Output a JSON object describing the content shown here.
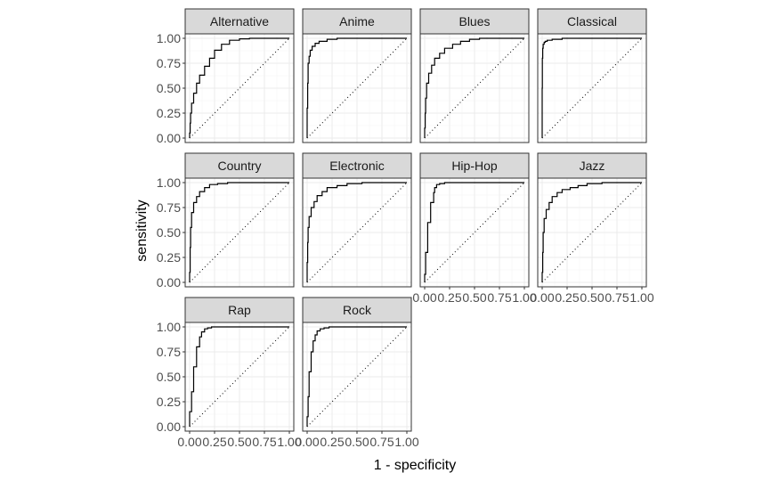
{
  "chart_data": {
    "type": "line",
    "theme": "ggplot2 theme_bw, facet_wrap (4 columns)",
    "xlabel": "1 - specificity",
    "ylabel": "sensitivity",
    "xlim": [
      0,
      1
    ],
    "ylim": [
      0,
      1
    ],
    "x_ticks": [
      "0.00",
      "0.25",
      "0.50",
      "0.75",
      "1.00"
    ],
    "y_ticks": [
      "0.00",
      "0.25",
      "0.50",
      "0.75",
      "1.00"
    ],
    "x_tick_labels_run_together": "0.000.250.500.751.00",
    "reference_line": "diagonal dotted y = x",
    "grid": true,
    "series": [
      {
        "name": "Alternative",
        "x": [
          0,
          0.005,
          0.01,
          0.02,
          0.04,
          0.07,
          0.1,
          0.15,
          0.2,
          0.25,
          0.32,
          0.4,
          0.5,
          0.6,
          0.75,
          1.0
        ],
        "y": [
          0,
          0.05,
          0.15,
          0.25,
          0.35,
          0.45,
          0.55,
          0.63,
          0.72,
          0.8,
          0.88,
          0.94,
          0.98,
          0.995,
          1.0,
          1.0
        ]
      },
      {
        "name": "Anime",
        "x": [
          0,
          0.005,
          0.01,
          0.02,
          0.03,
          0.05,
          0.08,
          0.12,
          0.2,
          0.3,
          0.45,
          0.6,
          1.0
        ],
        "y": [
          0,
          0.3,
          0.55,
          0.75,
          0.82,
          0.88,
          0.92,
          0.95,
          0.97,
          0.99,
          1.0,
          1.0,
          1.0
        ]
      },
      {
        "name": "Blues",
        "x": [
          0,
          0.005,
          0.01,
          0.02,
          0.04,
          0.07,
          0.1,
          0.15,
          0.2,
          0.28,
          0.36,
          0.45,
          0.55,
          0.7,
          1.0
        ],
        "y": [
          0,
          0.1,
          0.25,
          0.4,
          0.55,
          0.65,
          0.73,
          0.8,
          0.85,
          0.9,
          0.94,
          0.97,
          0.99,
          1.0,
          1.0
        ]
      },
      {
        "name": "Classical",
        "x": [
          0,
          0.002,
          0.005,
          0.01,
          0.02,
          0.03,
          0.05,
          0.1,
          0.2,
          0.3,
          0.45,
          1.0
        ],
        "y": [
          0,
          0.5,
          0.8,
          0.9,
          0.94,
          0.96,
          0.97,
          0.98,
          0.99,
          1.0,
          1.0,
          1.0
        ]
      },
      {
        "name": "Country",
        "x": [
          0,
          0.005,
          0.01,
          0.02,
          0.04,
          0.07,
          0.1,
          0.15,
          0.2,
          0.28,
          0.38,
          0.5,
          0.65,
          1.0
        ],
        "y": [
          0,
          0.1,
          0.35,
          0.55,
          0.7,
          0.8,
          0.86,
          0.91,
          0.95,
          0.98,
          0.99,
          1.0,
          1.0,
          1.0
        ]
      },
      {
        "name": "Electronic",
        "x": [
          0,
          0.005,
          0.01,
          0.02,
          0.04,
          0.07,
          0.1,
          0.15,
          0.2,
          0.3,
          0.4,
          0.55,
          0.7,
          1.0
        ],
        "y": [
          0,
          0.2,
          0.4,
          0.55,
          0.66,
          0.75,
          0.81,
          0.87,
          0.91,
          0.95,
          0.97,
          0.99,
          1.0,
          1.0
        ]
      },
      {
        "name": "Hip-Hop",
        "x": [
          0,
          0.01,
          0.03,
          0.06,
          0.09,
          0.1,
          0.12,
          0.15,
          0.2,
          0.3,
          0.45,
          0.6,
          1.0
        ],
        "y": [
          0,
          0.08,
          0.3,
          0.6,
          0.8,
          0.9,
          0.95,
          0.98,
          0.99,
          1.0,
          1.0,
          1.0,
          1.0
        ]
      },
      {
        "name": "Jazz",
        "x": [
          0,
          0.005,
          0.01,
          0.02,
          0.04,
          0.07,
          0.1,
          0.15,
          0.2,
          0.28,
          0.36,
          0.45,
          0.6,
          0.75,
          1.0
        ],
        "y": [
          0,
          0.1,
          0.3,
          0.5,
          0.64,
          0.73,
          0.8,
          0.86,
          0.9,
          0.93,
          0.95,
          0.97,
          0.99,
          1.0,
          1.0
        ]
      },
      {
        "name": "Rap",
        "x": [
          0,
          0.02,
          0.04,
          0.07,
          0.1,
          0.12,
          0.15,
          0.18,
          0.22,
          0.3,
          0.45,
          0.6,
          1.0
        ],
        "y": [
          0,
          0.15,
          0.35,
          0.6,
          0.8,
          0.9,
          0.95,
          0.98,
          0.99,
          1.0,
          1.0,
          1.0,
          1.0
        ]
      },
      {
        "name": "Rock",
        "x": [
          0,
          0.01,
          0.02,
          0.04,
          0.06,
          0.08,
          0.1,
          0.13,
          0.17,
          0.22,
          0.3,
          0.45,
          1.0
        ],
        "y": [
          0,
          0.1,
          0.3,
          0.55,
          0.75,
          0.86,
          0.92,
          0.96,
          0.98,
          0.99,
          1.0,
          1.0,
          1.0
        ]
      }
    ]
  },
  "colors": {
    "strip_fill": "#d9d9d9",
    "panel_border": "#333333",
    "grid_major": "#ebebeb",
    "grid_minor": "#f5f5f5",
    "curve": "#000000",
    "tick_text": "#4d4d4d"
  }
}
